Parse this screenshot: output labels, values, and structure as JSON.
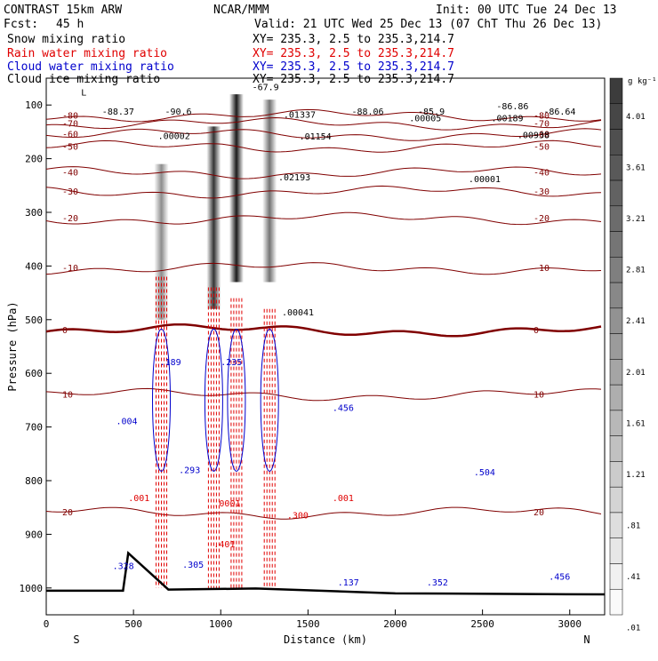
{
  "header": {
    "model": "CONTRAST 15km ARW",
    "center": "NCAR/MMM",
    "init": "Init: 00 UTC Tue 24 Dec 13",
    "fcst_label": "Fcst:",
    "fcst_value": "45 h",
    "valid": "Valid: 21 UTC Wed 25 Dec 13 (07 ChT Thu 26 Dec 13)"
  },
  "fields": [
    {
      "name": "Snow mixing ratio",
      "range": "XY=  235.3,   2.5 to 235.3,214.7",
      "color": "#000000"
    },
    {
      "name": "Rain water mixing ratio",
      "range": "XY=  235.3,   2.5 to 235.3,214.7",
      "color": "#e00000"
    },
    {
      "name": "Cloud water mixing ratio",
      "range": "XY=  235.3,   2.5 to 235.3,214.7",
      "color": "#0000cc"
    },
    {
      "name": "Cloud ice mixing ratio",
      "range": "XY=  235.3,   2.5 to 235.3,214.7",
      "color": "#000000"
    }
  ],
  "colorbar": {
    "unit": "g kg⁻¹",
    "ticks": [
      "4.01",
      "3.61",
      "3.21",
      "2.81",
      "2.41",
      "2.01",
      "1.61",
      "1.21",
      ".81",
      ".41",
      ".01"
    ]
  },
  "chart_data": {
    "type": "heatmap",
    "xlabel": "Distance (km)",
    "ylabel": "Pressure (hPa)",
    "x_ticks": [
      0,
      500,
      1000,
      1500,
      2000,
      2500,
      3000
    ],
    "xlim": [
      0,
      3200
    ],
    "ylim": [
      1050,
      50
    ],
    "y_ticks": [
      100,
      200,
      300,
      400,
      500,
      600,
      700,
      800,
      900,
      1000
    ],
    "x_end_labels": {
      "left": "S",
      "right": "N"
    },
    "snow_shading_columns": [
      {
        "x": 660,
        "p_top": 210,
        "p_bottom": 500,
        "intensity": 0.45
      },
      {
        "x": 960,
        "p_top": 140,
        "p_bottom": 480,
        "intensity": 0.8
      },
      {
        "x": 1090,
        "p_top": 80,
        "p_bottom": 430,
        "intensity": 0.9
      },
      {
        "x": 1280,
        "p_top": 90,
        "p_bottom": 430,
        "intensity": 0.55
      }
    ],
    "isotherms": [
      {
        "label": "-80",
        "p": 120
      },
      {
        "label": "-70",
        "p": 135
      },
      {
        "label": "-60",
        "p": 155
      },
      {
        "label": "-50",
        "p": 178
      },
      {
        "label": "-40",
        "p": 226
      },
      {
        "label": "-30",
        "p": 262
      },
      {
        "label": "-20",
        "p": 312
      },
      {
        "label": "-10",
        "p": 404
      },
      {
        "label": "0",
        "p": 520
      },
      {
        "label": "10",
        "p": 640
      },
      {
        "label": "20",
        "p": 860
      }
    ],
    "terrain_km": [
      0,
      440,
      470,
      700,
      1200,
      2000,
      3200
    ],
    "terrain_p": [
      1005,
      1005,
      935,
      1003,
      1001,
      1010,
      1012
    ],
    "annotations": [
      {
        "text": "L",
        "x": 200,
        "p": 82,
        "color": "#000000"
      },
      {
        "text": "-88.37",
        "x": 320,
        "p": 118,
        "color": "#000000"
      },
      {
        "text": "-90.6",
        "x": 680,
        "p": 118,
        "color": "#000000"
      },
      {
        "text": "-67.9",
        "x": 1180,
        "p": 72,
        "color": "#000000"
      },
      {
        "text": ".00002",
        "x": 640,
        "p": 163,
        "color": "#000000"
      },
      {
        "text": ".01337",
        "x": 1360,
        "p": 124,
        "color": "#000000"
      },
      {
        "text": ".01154",
        "x": 1450,
        "p": 164,
        "color": "#000000"
      },
      {
        "text": ".02193",
        "x": 1330,
        "p": 240,
        "color": "#000000"
      },
      {
        "text": ".00041",
        "x": 1350,
        "p": 492,
        "color": "#000000"
      },
      {
        "text": "-88.06",
        "x": 1750,
        "p": 118,
        "color": "#000000"
      },
      {
        "text": "-85.9",
        "x": 2130,
        "p": 118,
        "color": "#000000"
      },
      {
        "text": ".00005",
        "x": 2080,
        "p": 130,
        "color": "#000000"
      },
      {
        "text": ".00189",
        "x": 2550,
        "p": 130,
        "color": "#000000"
      },
      {
        "text": "-86.86",
        "x": 2580,
        "p": 108,
        "color": "#000000"
      },
      {
        "text": "-86.64",
        "x": 2850,
        "p": 118,
        "color": "#000000"
      },
      {
        "text": ".00938",
        "x": 2700,
        "p": 162,
        "color": "#000000"
      },
      {
        "text": ".00001",
        "x": 2420,
        "p": 244,
        "color": "#000000"
      },
      {
        "text": ".189",
        "x": 650,
        "p": 585,
        "color": "#0000cc"
      },
      {
        "text": ".235",
        "x": 1000,
        "p": 585,
        "color": "#0000cc"
      },
      {
        "text": ".004",
        "x": 400,
        "p": 695,
        "color": "#0000cc"
      },
      {
        "text": ".293",
        "x": 760,
        "p": 786,
        "color": "#0000cc"
      },
      {
        "text": ".456",
        "x": 1640,
        "p": 670,
        "color": "#0000cc"
      },
      {
        "text": ".504",
        "x": 2450,
        "p": 790,
        "color": "#0000cc"
      },
      {
        "text": ".328",
        "x": 380,
        "p": 965,
        "color": "#0000cc"
      },
      {
        "text": ".305",
        "x": 780,
        "p": 962,
        "color": "#0000cc"
      },
      {
        "text": ".137",
        "x": 1670,
        "p": 995,
        "color": "#0000cc"
      },
      {
        "text": ".352",
        "x": 2180,
        "p": 995,
        "color": "#0000cc"
      },
      {
        "text": ".456",
        "x": 2880,
        "p": 985,
        "color": "#0000cc"
      },
      {
        "text": ".001",
        "x": 470,
        "p": 838,
        "color": "#e00000"
      },
      {
        "text": ".0001",
        "x": 960,
        "p": 848,
        "color": "#e00000"
      },
      {
        "text": ".401",
        "x": 960,
        "p": 924,
        "color": "#e00000"
      },
      {
        "text": ".300",
        "x": 1380,
        "p": 870,
        "color": "#e00000"
      },
      {
        "text": ".001",
        "x": 1640,
        "p": 838,
        "color": "#e00000"
      }
    ]
  }
}
